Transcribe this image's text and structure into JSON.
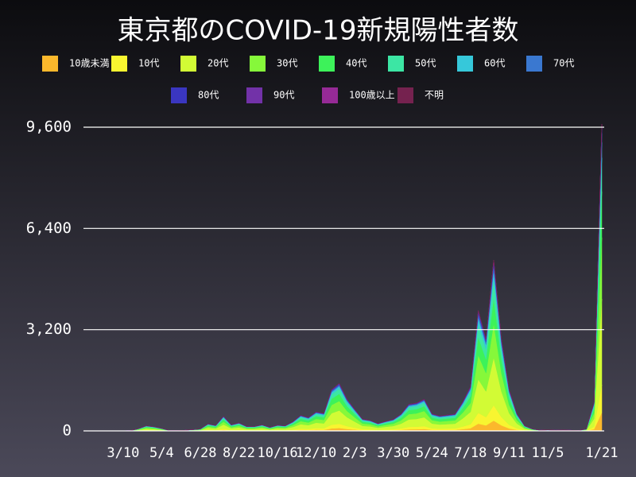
{
  "chart_data": {
    "type": "stacked_area",
    "title": "東京都のCOVID-19新規陽性者数",
    "categories": [
      null,
      null,
      null,
      null,
      "3/10",
      null,
      null,
      null,
      null,
      "5/4",
      null,
      null,
      null,
      null,
      "6/28",
      null,
      null,
      null,
      null,
      "8/22",
      null,
      null,
      null,
      null,
      "10/16",
      null,
      null,
      null,
      null,
      "12/10",
      null,
      null,
      null,
      null,
      "2/3",
      null,
      null,
      null,
      null,
      "3/30",
      null,
      null,
      null,
      null,
      "5/24",
      null,
      null,
      null,
      null,
      "7/18",
      null,
      null,
      null,
      null,
      "9/11",
      null,
      null,
      null,
      null,
      "11/5",
      null,
      null,
      null,
      null,
      null,
      null,
      "1/21"
    ],
    "ylim": [
      0,
      9600
    ],
    "yticks": [
      {
        "value": 0,
        "label": "0"
      },
      {
        "value": 3200,
        "label": "3,200"
      },
      {
        "value": 6400,
        "label": "6,400"
      },
      {
        "value": 9600,
        "label": "9,600"
      }
    ],
    "grid": true,
    "series": [
      {
        "name": "10歳未満",
        "color": "#fbb82c",
        "values": [
          0,
          0,
          0,
          0,
          0,
          1,
          4,
          10,
          8,
          5,
          1,
          1,
          1,
          2,
          4,
          13,
          10,
          28,
          11,
          15,
          8,
          8,
          11,
          7,
          11,
          10,
          17,
          29,
          25,
          36,
          33,
          78,
          90,
          60,
          41,
          22,
          20,
          14,
          18,
          22,
          32,
          50,
          53,
          60,
          32,
          28,
          30,
          32,
          55,
          84,
          228,
          174,
          324,
          174,
          78,
          32,
          10,
          4,
          1,
          2,
          1,
          2,
          1,
          1,
          4,
          54,
          582
        ]
      },
      {
        "name": "10代",
        "color": "#f8f530",
        "values": [
          0,
          0,
          0,
          0,
          0,
          1,
          6,
          14,
          12,
          7,
          1,
          1,
          2,
          4,
          5,
          20,
          15,
          41,
          17,
          23,
          13,
          13,
          17,
          10,
          16,
          14,
          26,
          44,
          38,
          54,
          50,
          117,
          135,
          90,
          61,
          33,
          30,
          21,
          27,
          32,
          48,
          76,
          79,
          90,
          49,
          42,
          45,
          48,
          83,
          126,
          342,
          261,
          486,
          261,
          117,
          49,
          14,
          6,
          2,
          3,
          2,
          2,
          2,
          1,
          5,
          81,
          873
        ]
      },
      {
        "name": "20代",
        "color": "#d2fb35",
        "values": [
          0,
          0,
          1,
          1,
          1,
          3,
          20,
          45,
          36,
          22,
          3,
          3,
          6,
          11,
          17,
          62,
          48,
          129,
          53,
          70,
          39,
          39,
          53,
          31,
          50,
          45,
          81,
          137,
          118,
          168,
          154,
          364,
          420,
          280,
          190,
          104,
          92,
          64,
          84,
          101,
          148,
          235,
          246,
          280,
          151,
          132,
          140,
          148,
          258,
          392,
          1064,
          812,
          1512,
          812,
          364,
          151,
          45,
          17,
          6,
          8,
          6,
          7,
          6,
          3,
          17,
          252,
          2716
        ]
      },
      {
        "name": "30代",
        "color": "#86f83a",
        "values": [
          0,
          0,
          0,
          1,
          1,
          2,
          14,
          32,
          26,
          16,
          2,
          2,
          4,
          8,
          12,
          44,
          34,
          92,
          38,
          50,
          28,
          28,
          38,
          22,
          36,
          32,
          58,
          98,
          84,
          120,
          110,
          260,
          300,
          200,
          136,
          74,
          66,
          46,
          60,
          72,
          106,
          168,
          176,
          200,
          108,
          94,
          100,
          106,
          184,
          280,
          760,
          580,
          1080,
          580,
          260,
          108,
          32,
          12,
          4,
          6,
          4,
          5,
          4,
          2,
          12,
          180,
          1940
        ]
      },
      {
        "name": "40代",
        "color": "#3df25a",
        "values": [
          0,
          0,
          0,
          0,
          1,
          1,
          11,
          24,
          20,
          12,
          2,
          2,
          3,
          6,
          9,
          33,
          26,
          69,
          29,
          38,
          21,
          21,
          29,
          17,
          27,
          24,
          44,
          74,
          63,
          90,
          83,
          195,
          225,
          150,
          102,
          56,
          50,
          35,
          45,
          54,
          80,
          126,
          132,
          150,
          81,
          71,
          75,
          80,
          138,
          210,
          570,
          435,
          810,
          435,
          195,
          81,
          24,
          9,
          3,
          5,
          3,
          4,
          3,
          2,
          9,
          135,
          1455
        ]
      },
      {
        "name": "50代",
        "color": "#3ce6a4",
        "values": [
          0,
          0,
          1,
          1,
          1,
          1,
          8,
          18,
          14,
          9,
          1,
          1,
          2,
          4,
          7,
          24,
          19,
          51,
          21,
          28,
          15,
          15,
          21,
          12,
          20,
          18,
          32,
          54,
          46,
          66,
          61,
          143,
          165,
          110,
          75,
          41,
          36,
          25,
          33,
          40,
          58,
          92,
          97,
          110,
          59,
          52,
          55,
          58,
          101,
          154,
          418,
          319,
          594,
          319,
          143,
          59,
          18,
          7,
          2,
          3,
          2,
          3,
          2,
          1,
          7,
          99,
          1067
        ]
      },
      {
        "name": "60代",
        "color": "#36c8da",
        "values": [
          0,
          0,
          0,
          0,
          1,
          1,
          4,
          8,
          7,
          4,
          1,
          1,
          1,
          2,
          3,
          11,
          9,
          23,
          10,
          13,
          7,
          7,
          10,
          6,
          9,
          8,
          15,
          25,
          21,
          30,
          28,
          65,
          75,
          50,
          34,
          19,
          17,
          12,
          15,
          18,
          27,
          42,
          44,
          50,
          27,
          24,
          25,
          27,
          46,
          70,
          190,
          145,
          270,
          145,
          65,
          27,
          8,
          3,
          1,
          2,
          1,
          1,
          1,
          1,
          3,
          45,
          485
        ]
      },
      {
        "name": "70代",
        "color": "#3a78d0",
        "values": [
          0,
          0,
          0,
          0,
          0,
          0,
          2,
          5,
          4,
          2,
          0,
          0,
          1,
          1,
          2,
          7,
          5,
          14,
          6,
          8,
          4,
          4,
          6,
          3,
          5,
          5,
          9,
          15,
          13,
          18,
          17,
          39,
          45,
          30,
          20,
          11,
          10,
          7,
          9,
          11,
          16,
          25,
          26,
          30,
          16,
          14,
          15,
          16,
          28,
          42,
          114,
          87,
          162,
          87,
          39,
          16,
          5,
          2,
          1,
          1,
          1,
          1,
          1,
          0,
          2,
          27,
          291
        ]
      },
      {
        "name": "80代",
        "color": "#3a36c0",
        "values": [
          0,
          0,
          0,
          0,
          0,
          0,
          1,
          3,
          3,
          2,
          0,
          0,
          0,
          1,
          1,
          4,
          3,
          9,
          4,
          5,
          3,
          3,
          4,
          2,
          4,
          3,
          6,
          10,
          8,
          12,
          11,
          26,
          30,
          20,
          14,
          7,
          7,
          5,
          6,
          7,
          11,
          17,
          18,
          20,
          11,
          9,
          10,
          11,
          18,
          28,
          76,
          58,
          108,
          58,
          26,
          11,
          3,
          1,
          0,
          1,
          0,
          1,
          0,
          0,
          1,
          18,
          194
        ]
      },
      {
        "name": "90代",
        "color": "#7232a8",
        "values": [
          0,
          0,
          0,
          0,
          0,
          0,
          1,
          2,
          1,
          1,
          0,
          0,
          0,
          0,
          1,
          2,
          2,
          5,
          2,
          3,
          1,
          1,
          2,
          1,
          2,
          2,
          3,
          5,
          4,
          6,
          6,
          13,
          15,
          10,
          7,
          4,
          3,
          2,
          3,
          4,
          5,
          8,
          9,
          10,
          5,
          5,
          5,
          5,
          9,
          14,
          38,
          29,
          54,
          29,
          13,
          5,
          2,
          1,
          0,
          0,
          0,
          0,
          0,
          0,
          1,
          9,
          97
        ]
      },
      {
        "name": "100歳以上",
        "color": "#962a96",
        "values": [
          0,
          0,
          0,
          0,
          0,
          0,
          0,
          0,
          0,
          0,
          0,
          0,
          0,
          0,
          0,
          0,
          0,
          0,
          0,
          0,
          0,
          0,
          0,
          0,
          0,
          0,
          0,
          0,
          0,
          0,
          0,
          0,
          0,
          0,
          0,
          0,
          0,
          0,
          0,
          0,
          0,
          0,
          0,
          0,
          0,
          0,
          0,
          0,
          0,
          0,
          0,
          0,
          0,
          0,
          0,
          0,
          0,
          0,
          0,
          0,
          0,
          0,
          0,
          0,
          0,
          0,
          0
        ]
      },
      {
        "name": "不明",
        "color": "#75224f",
        "values": [
          0,
          0,
          0,
          0,
          0,
          0,
          0,
          0,
          0,
          0,
          0,
          0,
          0,
          0,
          0,
          0,
          0,
          0,
          0,
          0,
          0,
          0,
          0,
          0,
          0,
          0,
          0,
          0,
          0,
          0,
          0,
          0,
          0,
          0,
          0,
          0,
          0,
          0,
          0,
          0,
          0,
          0,
          0,
          0,
          0,
          0,
          0,
          0,
          0,
          0,
          0,
          0,
          0,
          0,
          0,
          0,
          0,
          0,
          0,
          0,
          0,
          0,
          0,
          0,
          0,
          0,
          0
        ]
      }
    ]
  }
}
